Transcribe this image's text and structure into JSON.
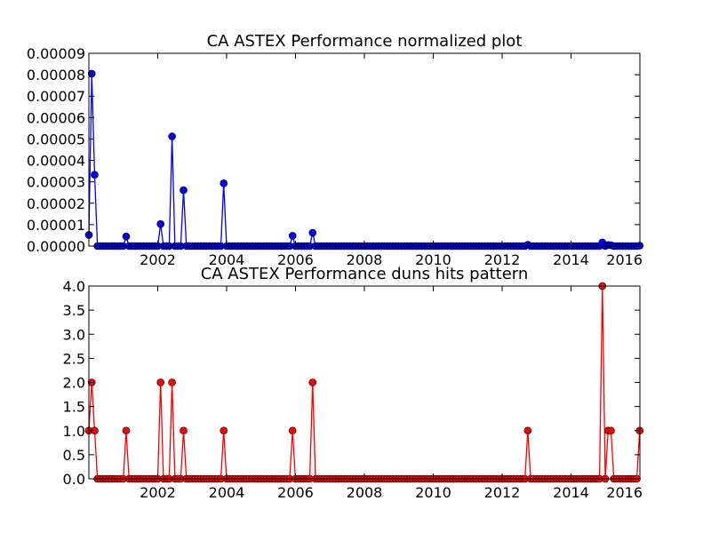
{
  "chart_data": [
    {
      "type": "line",
      "title": "CA ASTEX Performance normalized plot",
      "xlabel": "",
      "ylabel": "",
      "xlim": [
        2000.0,
        2016.0
      ],
      "ylim": [
        0,
        9e-05
      ],
      "x_ticks": [
        2002,
        2004,
        2006,
        2008,
        2010,
        2012,
        2014,
        2016
      ],
      "y_ticks": [
        "0.00000",
        "0.00001",
        "0.00002",
        "0.00003",
        "0.00004",
        "0.00005",
        "0.00006",
        "0.00007",
        "0.00008",
        "0.00009"
      ],
      "grid": false,
      "color": "#0000ff",
      "marker_spacing_years": 0.0833,
      "points": [
        {
          "x": 2000.0,
          "y": 5.2e-06
        },
        {
          "x": 2000.08,
          "y": 8.05e-05
        },
        {
          "x": 2000.17,
          "y": 3.33e-05
        },
        {
          "x": 2001.08,
          "y": 4.5e-06
        },
        {
          "x": 2002.08,
          "y": 1.03e-05
        },
        {
          "x": 2002.42,
          "y": 5.12e-05
        },
        {
          "x": 2002.75,
          "y": 2.61e-05
        },
        {
          "x": 2003.92,
          "y": 2.93e-05
        },
        {
          "x": 2005.92,
          "y": 4.8e-06
        },
        {
          "x": 2006.5,
          "y": 6.2e-06
        },
        {
          "x": 2012.75,
          "y": 6e-07
        },
        {
          "x": 2014.92,
          "y": 1.7e-06
        },
        {
          "x": 2015.08,
          "y": 5e-07
        },
        {
          "x": 2015.17,
          "y": 4e-07
        },
        {
          "x": 2016.0,
          "y": 2e-07
        }
      ]
    },
    {
      "type": "line",
      "title": "CA ASTEX Performance duns hits pattern",
      "xlabel": "",
      "ylabel": "",
      "xlim": [
        2000.0,
        2016.0
      ],
      "ylim": [
        0,
        4.0
      ],
      "x_ticks": [
        2002,
        2004,
        2006,
        2008,
        2010,
        2012,
        2014,
        2016
      ],
      "y_ticks": [
        "0.0",
        "0.5",
        "1.0",
        "1.5",
        "2.0",
        "2.5",
        "3.0",
        "3.5",
        "4.0"
      ],
      "grid": false,
      "color": "#ff0000",
      "marker_spacing_years": 0.0833,
      "points": [
        {
          "x": 2000.0,
          "y": 1
        },
        {
          "x": 2000.08,
          "y": 2
        },
        {
          "x": 2000.17,
          "y": 1
        },
        {
          "x": 2001.08,
          "y": 1
        },
        {
          "x": 2002.08,
          "y": 2
        },
        {
          "x": 2002.42,
          "y": 2
        },
        {
          "x": 2002.75,
          "y": 1
        },
        {
          "x": 2003.92,
          "y": 1
        },
        {
          "x": 2005.92,
          "y": 1
        },
        {
          "x": 2006.5,
          "y": 2
        },
        {
          "x": 2012.75,
          "y": 1
        },
        {
          "x": 2014.92,
          "y": 4
        },
        {
          "x": 2015.08,
          "y": 1
        },
        {
          "x": 2015.17,
          "y": 1
        },
        {
          "x": 2016.0,
          "y": 1
        }
      ]
    }
  ]
}
